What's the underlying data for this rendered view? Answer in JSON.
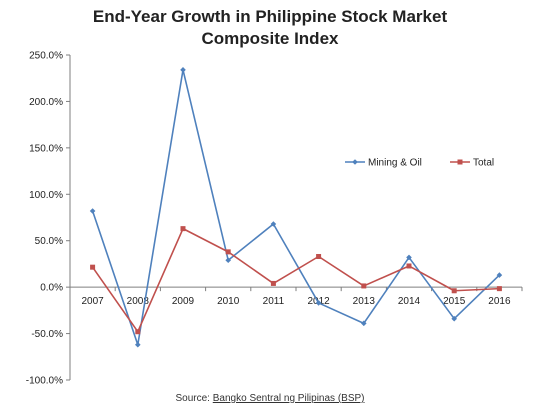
{
  "chart_data": {
    "type": "line",
    "title_line1": "End-Year Growth in Philippine Stock Market",
    "title_line2": "Composite Index",
    "categories": [
      "2007",
      "2008",
      "2009",
      "2010",
      "2011",
      "2012",
      "2013",
      "2014",
      "2015",
      "2016"
    ],
    "series": [
      {
        "name": "Mining  & Oil",
        "color": "#4f81bd",
        "marker": "diamond",
        "values": [
          82.0,
          -62.0,
          234.0,
          29.0,
          68.0,
          -17.0,
          -39.0,
          32.0,
          -34.0,
          13.0
        ]
      },
      {
        "name": "Total",
        "color": "#c0504d",
        "marker": "square",
        "values": [
          21.5,
          -48.0,
          63.0,
          38.0,
          4.0,
          33.0,
          1.3,
          22.8,
          -3.9,
          -1.6
        ]
      }
    ],
    "ylim": [
      -100,
      250
    ],
    "ystep": 50,
    "ytick_labels": [
      "-100.0%",
      "-50.0%",
      "0.0%",
      "50.0%",
      "100.0%",
      "150.0%",
      "200.0%",
      "250.0%"
    ],
    "legend_position": "right",
    "grid": false
  },
  "source": {
    "prefix": "Source: ",
    "link_text": "Bangko Sentral ng Pilipinas (BSP)"
  }
}
